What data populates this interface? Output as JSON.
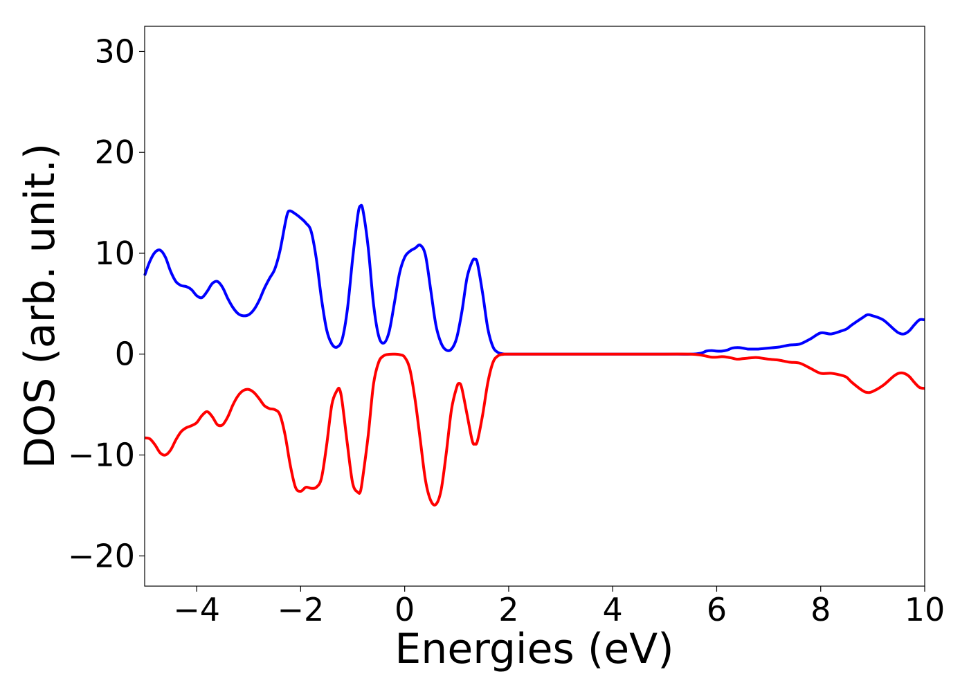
{
  "chart_data": {
    "type": "line",
    "title": "",
    "xlabel": "Energies (eV)",
    "ylabel": "DOS (arb. unit.)",
    "xlim": [
      -5,
      10
    ],
    "ylim": [
      -23,
      32.5
    ],
    "xticks": [
      -4,
      -2,
      0,
      2,
      4,
      6,
      8,
      10
    ],
    "xtick_labels": [
      "−4",
      "−2",
      "0",
      "2",
      "4",
      "6",
      "8",
      "10"
    ],
    "yticks": [
      -20,
      -10,
      0,
      10,
      20,
      30
    ],
    "ytick_labels": [
      "−20",
      "−10",
      "0",
      "10",
      "20",
      "30"
    ],
    "grid": false,
    "legend": "none",
    "series": [
      {
        "color": "#0000ff",
        "points": [
          [
            -5.0,
            7.8
          ],
          [
            -4.9,
            9.2
          ],
          [
            -4.8,
            10.1
          ],
          [
            -4.7,
            10.3
          ],
          [
            -4.6,
            9.6
          ],
          [
            -4.5,
            8.2
          ],
          [
            -4.4,
            7.2
          ],
          [
            -4.3,
            6.8
          ],
          [
            -4.2,
            6.7
          ],
          [
            -4.1,
            6.4
          ],
          [
            -4.0,
            5.8
          ],
          [
            -3.9,
            5.6
          ],
          [
            -3.8,
            6.2
          ],
          [
            -3.7,
            7.0
          ],
          [
            -3.6,
            7.2
          ],
          [
            -3.5,
            6.6
          ],
          [
            -3.4,
            5.5
          ],
          [
            -3.3,
            4.6
          ],
          [
            -3.2,
            4.0
          ],
          [
            -3.1,
            3.8
          ],
          [
            -3.0,
            3.9
          ],
          [
            -2.9,
            4.4
          ],
          [
            -2.8,
            5.3
          ],
          [
            -2.7,
            6.5
          ],
          [
            -2.6,
            7.5
          ],
          [
            -2.5,
            8.4
          ],
          [
            -2.4,
            10.2
          ],
          [
            -2.3,
            12.9
          ],
          [
            -2.25,
            14.0
          ],
          [
            -2.2,
            14.2
          ],
          [
            -2.1,
            13.9
          ],
          [
            -2.0,
            13.5
          ],
          [
            -1.9,
            13.0
          ],
          [
            -1.8,
            12.2
          ],
          [
            -1.7,
            9.5
          ],
          [
            -1.6,
            5.5
          ],
          [
            -1.5,
            2.4
          ],
          [
            -1.4,
            1.0
          ],
          [
            -1.3,
            0.7
          ],
          [
            -1.2,
            1.5
          ],
          [
            -1.1,
            4.5
          ],
          [
            -1.0,
            9.5
          ],
          [
            -0.9,
            13.8
          ],
          [
            -0.85,
            14.7
          ],
          [
            -0.8,
            14.2
          ],
          [
            -0.7,
            10.5
          ],
          [
            -0.6,
            5.0
          ],
          [
            -0.5,
            1.8
          ],
          [
            -0.4,
            1.1
          ],
          [
            -0.3,
            2.2
          ],
          [
            -0.2,
            5.0
          ],
          [
            -0.1,
            8.0
          ],
          [
            0.0,
            9.6
          ],
          [
            0.1,
            10.2
          ],
          [
            0.2,
            10.5
          ],
          [
            0.3,
            10.8
          ],
          [
            0.4,
            9.8
          ],
          [
            0.5,
            6.4
          ],
          [
            0.6,
            2.9
          ],
          [
            0.7,
            1.1
          ],
          [
            0.8,
            0.4
          ],
          [
            0.9,
            0.5
          ],
          [
            1.0,
            1.6
          ],
          [
            1.1,
            4.2
          ],
          [
            1.2,
            7.6
          ],
          [
            1.3,
            9.2
          ],
          [
            1.35,
            9.4
          ],
          [
            1.4,
            9.0
          ],
          [
            1.5,
            6.0
          ],
          [
            1.6,
            2.5
          ],
          [
            1.7,
            0.7
          ],
          [
            1.8,
            0.15
          ],
          [
            1.9,
            0.02
          ],
          [
            2.0,
            0.0
          ],
          [
            3.0,
            0.0
          ],
          [
            4.0,
            0.0
          ],
          [
            5.0,
            0.0
          ],
          [
            5.5,
            0.0
          ],
          [
            5.7,
            0.1
          ],
          [
            5.8,
            0.3
          ],
          [
            5.9,
            0.35
          ],
          [
            6.0,
            0.3
          ],
          [
            6.1,
            0.3
          ],
          [
            6.2,
            0.4
          ],
          [
            6.3,
            0.6
          ],
          [
            6.4,
            0.65
          ],
          [
            6.5,
            0.6
          ],
          [
            6.6,
            0.5
          ],
          [
            6.7,
            0.5
          ],
          [
            6.8,
            0.5
          ],
          [
            6.9,
            0.55
          ],
          [
            7.0,
            0.6
          ],
          [
            7.2,
            0.7
          ],
          [
            7.4,
            0.9
          ],
          [
            7.6,
            1.0
          ],
          [
            7.8,
            1.5
          ],
          [
            8.0,
            2.1
          ],
          [
            8.2,
            2.0
          ],
          [
            8.4,
            2.3
          ],
          [
            8.5,
            2.5
          ],
          [
            8.6,
            2.9
          ],
          [
            8.8,
            3.6
          ],
          [
            8.9,
            3.9
          ],
          [
            9.0,
            3.8
          ],
          [
            9.2,
            3.4
          ],
          [
            9.4,
            2.5
          ],
          [
            9.5,
            2.1
          ],
          [
            9.6,
            2.0
          ],
          [
            9.7,
            2.3
          ],
          [
            9.8,
            2.9
          ],
          [
            9.9,
            3.4
          ],
          [
            10.0,
            3.4
          ]
        ]
      },
      {
        "color": "#ff0000",
        "points": [
          [
            -5.0,
            -8.3
          ],
          [
            -4.9,
            -8.4
          ],
          [
            -4.8,
            -9.0
          ],
          [
            -4.7,
            -9.8
          ],
          [
            -4.6,
            -10.0
          ],
          [
            -4.5,
            -9.5
          ],
          [
            -4.4,
            -8.5
          ],
          [
            -4.3,
            -7.7
          ],
          [
            -4.2,
            -7.3
          ],
          [
            -4.1,
            -7.1
          ],
          [
            -4.0,
            -6.8
          ],
          [
            -3.9,
            -6.1
          ],
          [
            -3.8,
            -5.7
          ],
          [
            -3.7,
            -6.2
          ],
          [
            -3.6,
            -7.0
          ],
          [
            -3.5,
            -7.0
          ],
          [
            -3.4,
            -6.2
          ],
          [
            -3.3,
            -5.0
          ],
          [
            -3.2,
            -4.1
          ],
          [
            -3.1,
            -3.6
          ],
          [
            -3.0,
            -3.5
          ],
          [
            -2.9,
            -3.8
          ],
          [
            -2.8,
            -4.4
          ],
          [
            -2.7,
            -5.1
          ],
          [
            -2.6,
            -5.4
          ],
          [
            -2.5,
            -5.5
          ],
          [
            -2.4,
            -6.0
          ],
          [
            -2.3,
            -8.0
          ],
          [
            -2.2,
            -11.0
          ],
          [
            -2.1,
            -13.2
          ],
          [
            -2.0,
            -13.6
          ],
          [
            -1.9,
            -13.2
          ],
          [
            -1.8,
            -13.3
          ],
          [
            -1.7,
            -13.2
          ],
          [
            -1.6,
            -12.3
          ],
          [
            -1.5,
            -9.0
          ],
          [
            -1.4,
            -5.0
          ],
          [
            -1.3,
            -3.6
          ],
          [
            -1.25,
            -3.5
          ],
          [
            -1.2,
            -4.8
          ],
          [
            -1.1,
            -9.0
          ],
          [
            -1.0,
            -12.8
          ],
          [
            -0.9,
            -13.7
          ],
          [
            -0.85,
            -13.6
          ],
          [
            -0.8,
            -12.0
          ],
          [
            -0.7,
            -8.0
          ],
          [
            -0.6,
            -3.0
          ],
          [
            -0.5,
            -0.8
          ],
          [
            -0.4,
            -0.15
          ],
          [
            -0.3,
            -0.02
          ],
          [
            -0.2,
            0.0
          ],
          [
            -0.1,
            -0.05
          ],
          [
            0.0,
            -0.3
          ],
          [
            0.1,
            -1.5
          ],
          [
            0.2,
            -4.5
          ],
          [
            0.3,
            -8.5
          ],
          [
            0.4,
            -12.5
          ],
          [
            0.5,
            -14.5
          ],
          [
            0.6,
            -14.9
          ],
          [
            0.7,
            -13.5
          ],
          [
            0.8,
            -9.8
          ],
          [
            0.9,
            -5.5
          ],
          [
            1.0,
            -3.3
          ],
          [
            1.05,
            -2.9
          ],
          [
            1.1,
            -3.4
          ],
          [
            1.2,
            -6.0
          ],
          [
            1.3,
            -8.6
          ],
          [
            1.35,
            -8.9
          ],
          [
            1.4,
            -8.6
          ],
          [
            1.5,
            -6.0
          ],
          [
            1.6,
            -2.8
          ],
          [
            1.7,
            -0.8
          ],
          [
            1.8,
            -0.15
          ],
          [
            1.9,
            -0.02
          ],
          [
            2.0,
            0.0
          ],
          [
            3.0,
            0.0
          ],
          [
            4.0,
            0.0
          ],
          [
            5.0,
            0.0
          ],
          [
            5.5,
            0.0
          ],
          [
            5.7,
            -0.1
          ],
          [
            5.8,
            -0.2
          ],
          [
            5.9,
            -0.3
          ],
          [
            6.0,
            -0.3
          ],
          [
            6.1,
            -0.25
          ],
          [
            6.2,
            -0.3
          ],
          [
            6.3,
            -0.4
          ],
          [
            6.4,
            -0.5
          ],
          [
            6.5,
            -0.45
          ],
          [
            6.6,
            -0.4
          ],
          [
            6.7,
            -0.35
          ],
          [
            6.8,
            -0.35
          ],
          [
            7.0,
            -0.5
          ],
          [
            7.2,
            -0.6
          ],
          [
            7.4,
            -0.8
          ],
          [
            7.6,
            -0.9
          ],
          [
            7.8,
            -1.4
          ],
          [
            8.0,
            -1.9
          ],
          [
            8.2,
            -1.9
          ],
          [
            8.4,
            -2.1
          ],
          [
            8.5,
            -2.3
          ],
          [
            8.6,
            -2.8
          ],
          [
            8.8,
            -3.6
          ],
          [
            8.9,
            -3.8
          ],
          [
            9.0,
            -3.7
          ],
          [
            9.2,
            -3.1
          ],
          [
            9.4,
            -2.2
          ],
          [
            9.5,
            -1.9
          ],
          [
            9.6,
            -1.9
          ],
          [
            9.7,
            -2.2
          ],
          [
            9.8,
            -2.8
          ],
          [
            9.9,
            -3.3
          ],
          [
            10.0,
            -3.4
          ]
        ]
      }
    ]
  }
}
